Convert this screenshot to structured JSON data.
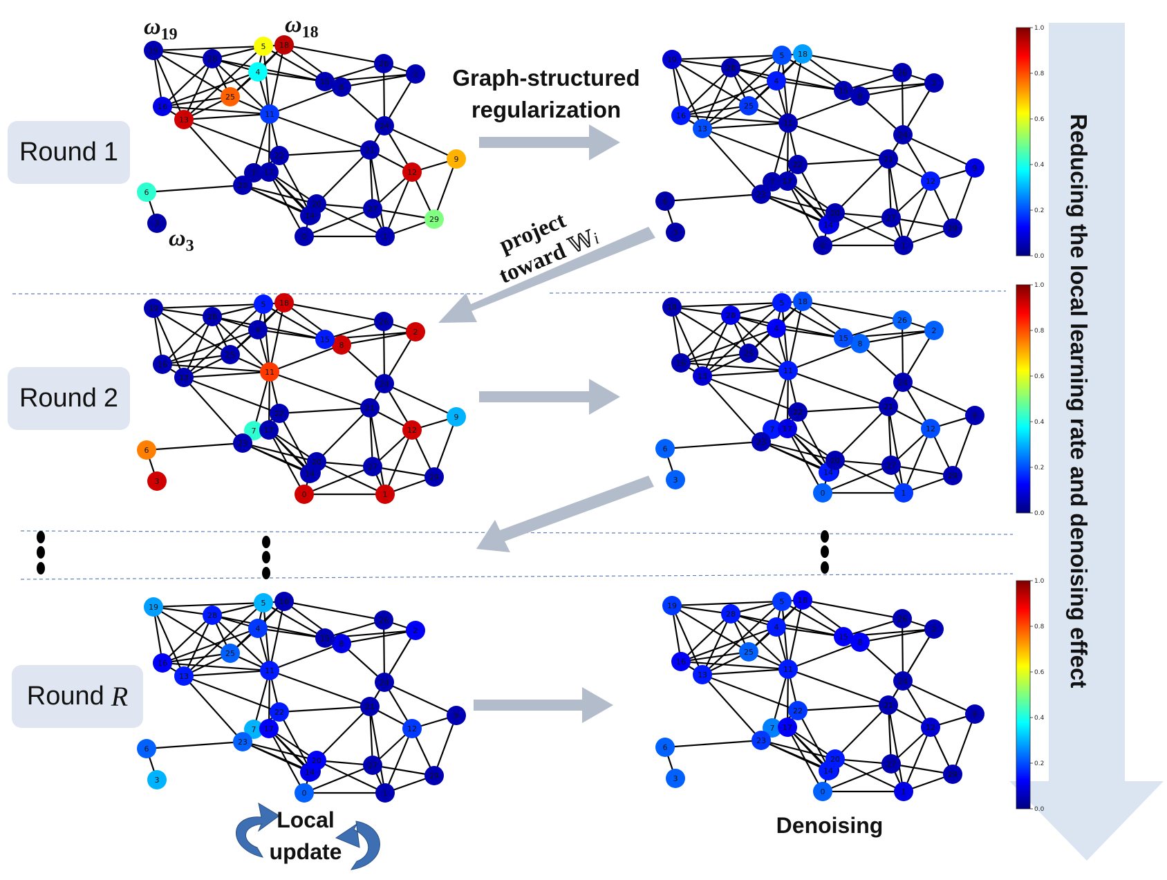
{
  "rounds": [
    {
      "label": "Round",
      "number": "1"
    },
    {
      "label": "Round",
      "number": "2"
    },
    {
      "label": "Round",
      "number": "R"
    }
  ],
  "labels": {
    "graph_reg_line1": "Graph-structured",
    "graph_reg_line2": "regularization",
    "project_line1": "project",
    "project_line2": "toward",
    "project_symbol": "𝕎",
    "project_subscript": "i",
    "local_line1": "Local",
    "local_line2": "update",
    "denoising": "Denoising",
    "side_text": "Reducing the local learning rate and denoising effect"
  },
  "omega_labels": [
    {
      "base": "ω",
      "sub": "19"
    },
    {
      "base": "ω",
      "sub": "18"
    },
    {
      "base": "ω",
      "sub": "3"
    }
  ],
  "colorbar_ticks": [
    "1.0",
    "0.8",
    "0.6",
    "0.4",
    "0.2",
    "0.0"
  ],
  "colors": {
    "panel": "#dfe6f1",
    "arrow": "#b3bccb",
    "side_arrow": "#dbe4f1",
    "cycle_arrow": "#3d6fb2",
    "edge": "#000000"
  },
  "nodes": [
    "0",
    "1",
    "2",
    "3",
    "4",
    "5",
    "6",
    "7",
    "8",
    "9",
    "10",
    "11",
    "12",
    "13",
    "14",
    "15",
    "16",
    "17",
    "18",
    "19",
    "20",
    "21",
    "22",
    "23",
    "24",
    "25",
    "26",
    "27",
    "28",
    "29"
  ],
  "graph_values": {
    "r1_left": [
      0.05,
      0.05,
      0.05,
      0.04,
      0.38,
      0.62,
      0.42,
      0.04,
      0.05,
      0.7,
      0.05,
      0.18,
      0.92,
      0.92,
      0.05,
      0.05,
      0.1,
      0.05,
      0.94,
      0.05,
      0.05,
      0.05,
      0.05,
      0.05,
      0.05,
      0.78,
      0.05,
      0.05,
      0.05,
      0.5
    ],
    "r1_right": [
      0.05,
      0.05,
      0.05,
      0.04,
      0.15,
      0.2,
      0.04,
      0.05,
      0.05,
      0.1,
      0.05,
      0.05,
      0.15,
      0.2,
      0.1,
      0.05,
      0.15,
      0.05,
      0.28,
      0.08,
      0.05,
      0.05,
      0.05,
      0.05,
      0.05,
      0.18,
      0.05,
      0.05,
      0.05,
      0.05
    ],
    "r2_left": [
      0.92,
      0.92,
      0.92,
      0.92,
      0.05,
      0.15,
      0.75,
      0.42,
      0.92,
      0.3,
      0.05,
      0.82,
      0.92,
      0.05,
      0.05,
      0.15,
      0.05,
      0.05,
      0.92,
      0.05,
      0.05,
      0.05,
      0.05,
      0.05,
      0.05,
      0.05,
      0.05,
      0.05,
      0.05,
      0.05
    ],
    "r2_right": [
      0.22,
      0.18,
      0.22,
      0.22,
      0.12,
      0.15,
      0.22,
      0.15,
      0.22,
      0.05,
      0.05,
      0.15,
      0.2,
      0.08,
      0.15,
      0.2,
      0.05,
      0.1,
      0.2,
      0.05,
      0.05,
      0.05,
      0.05,
      0.05,
      0.05,
      0.05,
      0.22,
      0.05,
      0.1,
      0.05
    ],
    "r3_left": [
      0.22,
      0.05,
      0.12,
      0.3,
      0.18,
      0.3,
      0.22,
      0.3,
      0.1,
      0.05,
      0.05,
      0.15,
      0.18,
      0.15,
      0.1,
      0.05,
      0.12,
      0.12,
      0.05,
      0.28,
      0.12,
      0.05,
      0.15,
      0.22,
      0.05,
      0.22,
      0.05,
      0.05,
      0.15,
      0.05
    ],
    "r3_right": [
      0.22,
      0.1,
      0.05,
      0.22,
      0.15,
      0.18,
      0.22,
      0.25,
      0.12,
      0.05,
      0.05,
      0.15,
      0.08,
      0.15,
      0.15,
      0.12,
      0.12,
      0.12,
      0.12,
      0.18,
      0.15,
      0.05,
      0.18,
      0.18,
      0.05,
      0.22,
      0.05,
      0.05,
      0.15,
      0.05
    ]
  }
}
